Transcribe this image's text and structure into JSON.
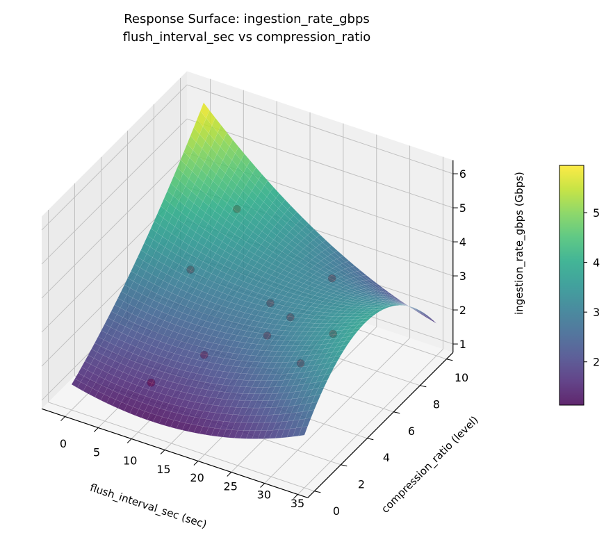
{
  "chart_data": {
    "type": "surface3d",
    "title": "Response Surface: ingestion_rate_gbps",
    "subtitle": "flush_interval_sec vs compression_ratio",
    "xlabel": "flush_interval_sec (sec)",
    "ylabel": "compression_ratio (level)",
    "zlabel": "ingestion_rate_gbps (Gbps)",
    "xlim": [
      -3.5,
      36.5
    ],
    "ylim": [
      -0.5,
      10.5
    ],
    "zlim": [
      0.75,
      6.4
    ],
    "x_ticks": [
      "0",
      "5",
      "10",
      "15",
      "20",
      "25",
      "30",
      "35"
    ],
    "y_ticks": [
      "0",
      "2",
      "4",
      "6",
      "8",
      "10"
    ],
    "z_ticks": [
      "1",
      "2",
      "3",
      "4",
      "5",
      "6"
    ],
    "colormap": "viridis",
    "colorbar": {
      "min": 1.13,
      "max": 5.95,
      "ticks": [
        "2",
        "3",
        "4",
        "5"
      ]
    },
    "grid": true,
    "surface_model": {
      "intercept": 1.5,
      "x": -0.05,
      "x2": 0.00208,
      "y": 0.28,
      "y2": 0.016,
      "xy": 0.01086,
      "xy2": -0.002514
    },
    "surface_x_range": [
      0,
      35
    ],
    "surface_y_range": [
      0,
      10
    ],
    "points_color": "#ff0000",
    "points": [
      {
        "x": 8,
        "y": 2,
        "z": 1.3
      },
      {
        "x": 12,
        "y": 4,
        "z": 1.6
      },
      {
        "x": 2,
        "y": 8,
        "z": 1.9
      },
      {
        "x": 5,
        "y": 10,
        "z": 3.1
      },
      {
        "x": 14,
        "y": 8,
        "z": 1.7
      },
      {
        "x": 19,
        "y": 7,
        "z": 2.0
      },
      {
        "x": 17.5,
        "y": 6,
        "z": 1.75
      },
      {
        "x": 19.3,
        "y": 10,
        "z": 2.0
      },
      {
        "x": 27.4,
        "y": 6,
        "z": 2.45
      },
      {
        "x": 26.5,
        "y": 4,
        "z": 2.3
      }
    ]
  }
}
